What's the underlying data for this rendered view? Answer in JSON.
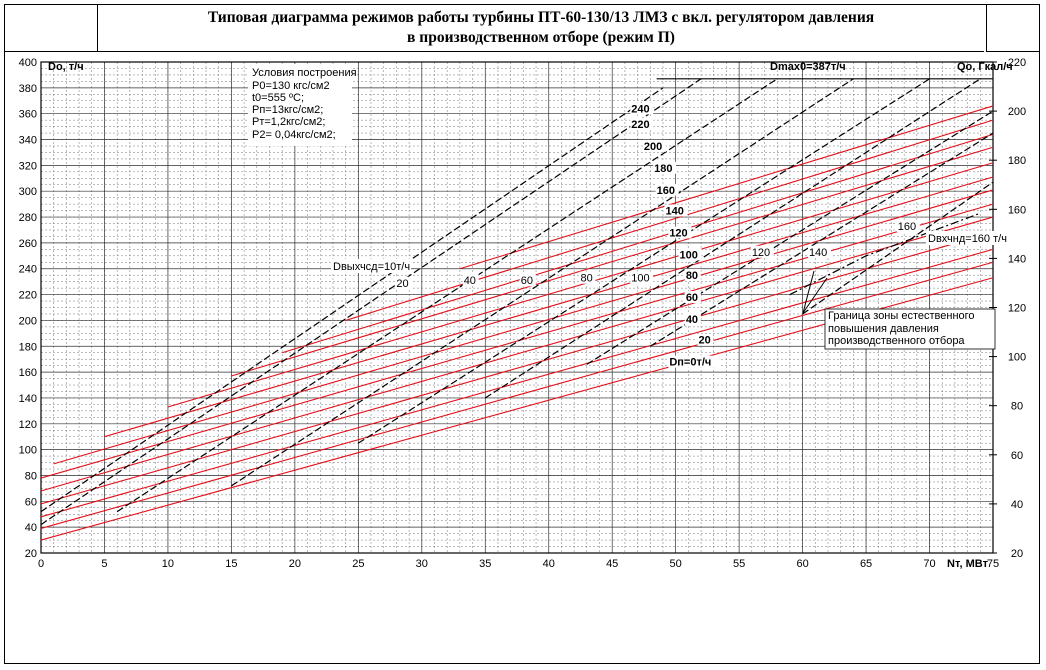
{
  "title_line1": "Типовая диаграмма режимов работы турбины ПТ-60-130/13 ЛМЗ с вкл. регулятором давления",
  "title_line2": "в производственном  отборе (режим П)",
  "chart_data": {
    "type": "line",
    "xlabel": "Nт, МВт",
    "ylabel": "Do, т/ч",
    "y2label": "Qo, Гкал/ч",
    "xlim": [
      0,
      75
    ],
    "ylim": [
      20,
      400
    ],
    "y2lim": [
      20,
      220
    ],
    "x_ticks": [
      0,
      5,
      10,
      15,
      20,
      25,
      30,
      35,
      40,
      45,
      50,
      55,
      60,
      65,
      70,
      75
    ],
    "y_ticks": [
      20,
      40,
      60,
      80,
      100,
      120,
      140,
      160,
      180,
      200,
      220,
      240,
      260,
      280,
      300,
      320,
      340,
      360,
      380,
      400
    ],
    "y2_ticks": [
      20,
      40,
      60,
      80,
      100,
      120,
      140,
      160,
      180,
      200,
      220
    ],
    "grid": true,
    "conditions": {
      "heading": "Условия построения",
      "lines": [
        "P0=130 кгс/см2",
        "t0=555 ºC;",
        "Pп=13кгс/см2;",
        "Pт=1,2кгс/см2;",
        "P2= 0,04кгс/см2;"
      ]
    },
    "max_flow_label": "Dmax0=387т/ч",
    "max_flow": 387,
    "series_label_prefix": "Dп=",
    "series_label_zero": "Dп=0т/ч",
    "red_series": [
      {
        "name": "0",
        "x": [
          0,
          75
        ],
        "y": [
          30,
          233
        ]
      },
      {
        "name": "20",
        "x": [
          0,
          75
        ],
        "y": [
          39,
          245
        ]
      },
      {
        "name": "40",
        "x": [
          0,
          75
        ],
        "y": [
          48,
          255
        ]
      },
      {
        "name": "60",
        "x": [
          0,
          75
        ],
        "y": [
          58,
          268
        ]
      },
      {
        "name": "80",
        "x": [
          0,
          75
        ],
        "y": [
          68,
          280
        ]
      },
      {
        "name": "100",
        "x": [
          0,
          75
        ],
        "y": [
          78,
          290
        ]
      },
      {
        "name": "120",
        "x": [
          1,
          75
        ],
        "y": [
          89,
          301
        ]
      },
      {
        "name": "140",
        "x": [
          5,
          75
        ],
        "y": [
          110,
          311
        ]
      },
      {
        "name": "160",
        "x": [
          10,
          75
        ],
        "y": [
          133,
          322
        ]
      },
      {
        "name": "180",
        "x": [
          15,
          75
        ],
        "y": [
          157,
          334
        ]
      },
      {
        "name": "200",
        "x": [
          19,
          75
        ],
        "y": [
          175,
          344
        ]
      },
      {
        "name": "220",
        "x": [
          24,
          75
        ],
        "y": [
          200,
          355
        ]
      },
      {
        "name": "240",
        "x": [
          33,
          75
        ],
        "y": [
          240,
          366
        ]
      }
    ],
    "red_labels": [
      {
        "text": "240",
        "x": 46.5,
        "y": 361
      },
      {
        "text": "220",
        "x": 46.5,
        "y": 349
      },
      {
        "text": "200",
        "x": 47.5,
        "y": 332
      },
      {
        "text": "180",
        "x": 48.3,
        "y": 315
      },
      {
        "text": "160",
        "x": 48.5,
        "y": 298
      },
      {
        "text": "140",
        "x": 49.2,
        "y": 282
      },
      {
        "text": "120",
        "x": 49.5,
        "y": 265
      },
      {
        "text": "100",
        "x": 50.3,
        "y": 248
      },
      {
        "text": "80",
        "x": 50.8,
        "y": 232
      },
      {
        "text": "60",
        "x": 50.8,
        "y": 215
      },
      {
        "text": "40",
        "x": 50.8,
        "y": 198
      },
      {
        "text": "20",
        "x": 51.8,
        "y": 182
      },
      {
        "text": "Dп=0т/ч",
        "x": 49.5,
        "y": 165
      }
    ],
    "black_series": [
      {
        "name": "10",
        "x": [
          0,
          49
        ],
        "y": [
          52,
          380
        ]
      },
      {
        "name": "20",
        "x": [
          0,
          52
        ],
        "y": [
          42,
          387
        ]
      },
      {
        "name": "40",
        "x": [
          6,
          58
        ],
        "y": [
          52,
          387
        ]
      },
      {
        "name": "60",
        "x": [
          15,
          64
        ],
        "y": [
          72,
          387
        ]
      },
      {
        "name": "80",
        "x": [
          25,
          70
        ],
        "y": [
          105,
          387
        ]
      },
      {
        "name": "100",
        "x": [
          35,
          74
        ],
        "y": [
          140,
          387
        ]
      },
      {
        "name": "120",
        "x": [
          43,
          75
        ],
        "y": [
          166,
          362
        ]
      },
      {
        "name": "140",
        "x": [
          48,
          75
        ],
        "y": [
          180,
          345
        ]
      },
      {
        "name": "160",
        "x": [
          60,
          75
        ],
        "y": [
          205,
          307
        ]
      }
    ],
    "black_labels": [
      {
        "text": "20",
        "x": 28,
        "y": 226
      },
      {
        "text": "40",
        "x": 33.3,
        "y": 228
      },
      {
        "text": "60",
        "x": 37.8,
        "y": 228
      },
      {
        "text": "80",
        "x": 42.5,
        "y": 230
      },
      {
        "text": "100",
        "x": 46.5,
        "y": 230
      },
      {
        "text": "120",
        "x": 56,
        "y": 250
      },
      {
        "text": "140",
        "x": 60.5,
        "y": 250
      },
      {
        "text": "160",
        "x": 67.5,
        "y": 270
      }
    ],
    "boundary": {
      "x": [
        59,
        63,
        65,
        74
      ],
      "y": [
        220,
        240,
        250,
        283
      ]
    },
    "label_d_out": "Dвыхчсд=10т/ч",
    "label_d_in": "Dвхчнд=160 т/ч",
    "annotation": "Граница зоны естественного повышения давления производственного отбора"
  }
}
